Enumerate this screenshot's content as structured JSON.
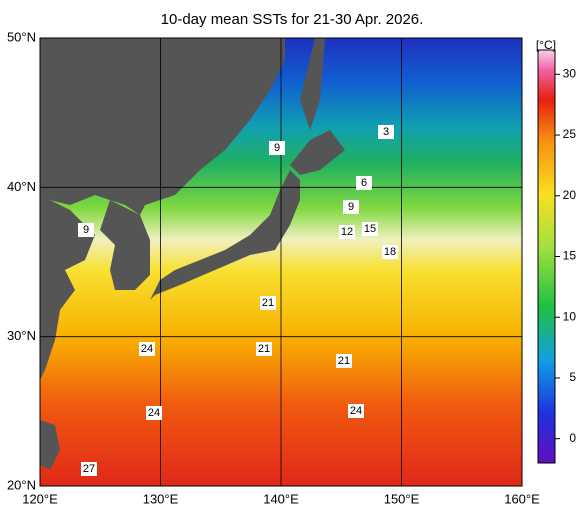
{
  "title": "10-day mean SSTs for 21-30 Apr. 2026.",
  "lat_labels": [
    "50°N",
    "40°N",
    "30°N",
    "20°N"
  ],
  "lon_labels": [
    "120°E",
    "130°E",
    "140°E",
    "150°E",
    "160°E"
  ],
  "colorbar": {
    "unit": "[°C]",
    "range": [
      -2,
      32
    ],
    "ticks": [
      0,
      5,
      10,
      15,
      20,
      25,
      30
    ]
  },
  "contour_labels": [
    "3",
    "6",
    "9",
    "9",
    "9",
    "12",
    "15",
    "18",
    "21",
    "21",
    "21",
    "24",
    "24",
    "24",
    "27"
  ]
}
